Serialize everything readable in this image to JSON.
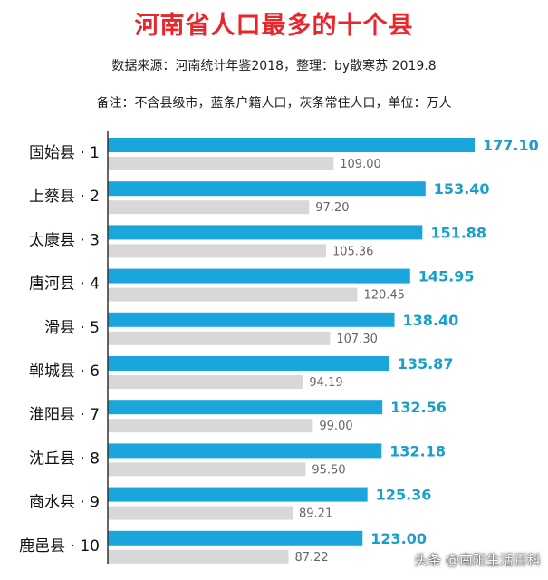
{
  "colors": {
    "primary_bar": "#1aa6dd",
    "secondary_bar": "#d8d8d8",
    "title": "#e8262b",
    "primary_label": "#1aa0c8"
  },
  "chart_data": {
    "type": "bar",
    "orientation": "horizontal",
    "title": "河南省人口最多的十个县",
    "subtitle": "数据来源：河南统计年鉴2018，整理：by散寒苏 2019.8",
    "note": "备注：不含县级市，蓝条户籍人口，灰条常住人口，单位：万人",
    "categories": [
      "固始县 · 1",
      "上蔡县 · 2",
      "太康县 · 3",
      "唐河县 · 4",
      "滑县 · 5",
      "郸城县 · 6",
      "淮阳县 · 7",
      "沈丘县 · 8",
      "商水县 · 9",
      "鹿邑县 · 10"
    ],
    "series": [
      {
        "values": [
          177.1,
          153.4,
          151.88,
          145.95,
          138.4,
          135.87,
          132.56,
          132.18,
          125.36,
          123.0
        ],
        "labels": [
          "177.10",
          "153.40",
          "151.88",
          "145.95",
          "138.40",
          "135.87",
          "132.56",
          "132.18",
          "125.36",
          "123.00"
        ]
      },
      {
        "values": [
          109.0,
          97.2,
          105.36,
          120.45,
          107.3,
          94.19,
          99.0,
          95.5,
          89.21,
          87.22
        ],
        "labels": [
          "109.00",
          "97.20",
          "105.36",
          "120.45",
          "107.30",
          "94.19",
          "99.00",
          "95.50",
          "89.21",
          "87.22"
        ]
      }
    ],
    "xlim": [
      0,
      177.1
    ],
    "grid": false,
    "legend": "none"
  },
  "watermark": "头条 @南阳生活百科"
}
